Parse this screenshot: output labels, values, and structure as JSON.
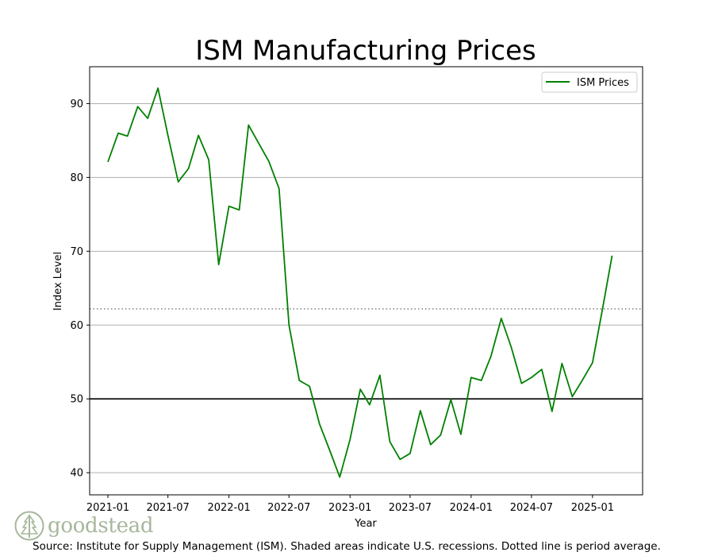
{
  "chart_data": {
    "type": "line",
    "title": "ISM Manufacturing Prices",
    "xlabel": "Year",
    "ylabel": "Index Level",
    "ylim": [
      37,
      95
    ],
    "xlim": [
      "2020-11-07",
      "2025-06-01"
    ],
    "yticks": [
      40,
      50,
      60,
      70,
      80,
      90
    ],
    "xticks": [
      "2021-01",
      "2021-07",
      "2022-01",
      "2022-07",
      "2023-01",
      "2023-07",
      "2024-01",
      "2024-07",
      "2025-01"
    ],
    "grid": "horizontal",
    "legend_position": "top-right",
    "reference_lines": [
      {
        "name": "neutral-50",
        "value": 50,
        "style": "solid",
        "color": "#000000"
      },
      {
        "name": "period-average",
        "value": 62.2,
        "style": "dotted",
        "color": "#808080"
      }
    ],
    "series": [
      {
        "name": "ISM Prices",
        "color": "#008000",
        "x": [
          "2021-01",
          "2021-02",
          "2021-03",
          "2021-04",
          "2021-05",
          "2021-06",
          "2021-07",
          "2021-08",
          "2021-09",
          "2021-10",
          "2021-11",
          "2021-12",
          "2022-01",
          "2022-02",
          "2022-03",
          "2022-04",
          "2022-05",
          "2022-06",
          "2022-07",
          "2022-08",
          "2022-09",
          "2022-10",
          "2022-11",
          "2022-12",
          "2023-01",
          "2023-02",
          "2023-03",
          "2023-04",
          "2023-05",
          "2023-06",
          "2023-07",
          "2023-08",
          "2023-09",
          "2023-10",
          "2023-11",
          "2023-12",
          "2024-01",
          "2024-02",
          "2024-03",
          "2024-04",
          "2024-05",
          "2024-06",
          "2024-07",
          "2024-08",
          "2024-09",
          "2024-10",
          "2024-11",
          "2024-12",
          "2025-01",
          "2025-02",
          "2025-03"
        ],
        "values": [
          82.1,
          86.0,
          85.6,
          89.6,
          88.0,
          92.1,
          85.7,
          79.4,
          81.2,
          85.7,
          82.4,
          68.2,
          76.1,
          75.6,
          87.1,
          84.6,
          82.2,
          78.5,
          60.0,
          52.5,
          51.7,
          46.6,
          43.0,
          39.4,
          44.5,
          51.3,
          49.2,
          53.2,
          44.2,
          41.8,
          42.6,
          48.4,
          43.8,
          45.1,
          49.9,
          45.2,
          52.9,
          52.5,
          55.8,
          60.9,
          57.0,
          52.1,
          52.9,
          54.0,
          48.3,
          54.8,
          50.3,
          52.5,
          54.9,
          62.4,
          69.4
        ]
      }
    ]
  },
  "source_text": "Source:  Institute for Supply Management (ISM). Shaded areas indicate U.S. recessions. Dotted line is period average.",
  "logo_text": "goodstead"
}
